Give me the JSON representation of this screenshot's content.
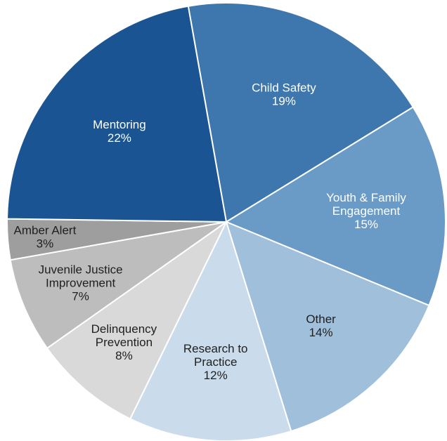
{
  "chart_data": {
    "type": "pie",
    "slices": [
      {
        "name": "Child Safety",
        "label_lines": [
          "Child Safety"
        ],
        "value": 19,
        "value_label": "19%",
        "color": "#3e77ad",
        "text_color": "#ffffff"
      },
      {
        "name": "Youth & Family Engagement",
        "label_lines": [
          "Youth & Family",
          "Engagement"
        ],
        "value": 15,
        "value_label": "15%",
        "color": "#6a9ac6",
        "text_color": "#ffffff"
      },
      {
        "name": "Other",
        "label_lines": [
          "Other"
        ],
        "value": 14,
        "value_label": "14%",
        "color": "#9fbfda",
        "text_color": "#1f1f1f"
      },
      {
        "name": "Research to Practice",
        "label_lines": [
          "Research to",
          "Practice"
        ],
        "value": 12,
        "value_label": "12%",
        "color": "#cadbeb",
        "text_color": "#1f1f1f"
      },
      {
        "name": "Delinquency Prevention",
        "label_lines": [
          "Delinquency",
          "Prevention"
        ],
        "value": 8,
        "value_label": "8%",
        "color": "#d9d9d9",
        "text_color": "#1f1f1f"
      },
      {
        "name": "Juvenile Justice Improvement",
        "label_lines": [
          "Juvenile Justice",
          "Improvement"
        ],
        "value": 7,
        "value_label": "7%",
        "color": "#bdbdbd",
        "text_color": "#1f1f1f"
      },
      {
        "name": "Amber Alert",
        "label_lines": [
          "Amber Alert"
        ],
        "value": 3,
        "value_label": "3%",
        "color": "#9e9e9e",
        "text_color": "#1f1f1f"
      },
      {
        "name": "Mentoring",
        "label_lines": [
          "Mentoring"
        ],
        "value": 22,
        "value_label": "22%",
        "color": "#1a5492",
        "text_color": "#ffffff"
      }
    ],
    "legend": "none"
  }
}
